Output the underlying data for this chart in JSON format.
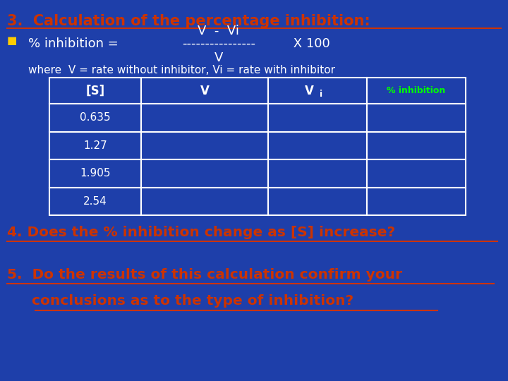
{
  "bg_color": "#1e3faa",
  "title_text": "3.  Calculation of the percentage inhibition:",
  "title_color": "#cc3300",
  "title_fontsize": 15,
  "bullet_color": "#ffcc00",
  "formula_color": "#ffffff",
  "formula_numerator": "V  -  Vi",
  "formula_dashes": "----------------",
  "formula_x100": " X 100",
  "formula_denominator": "V",
  "where_text": "where  V = rate without inhibitor, Vi = rate with inhibitor",
  "where_color": "#ffffff",
  "table_rows": [
    "0.635",
    "1.27",
    "1.905",
    "2.54"
  ],
  "table_text_color": "#ffffff",
  "table_bg_color": "#1e3faa",
  "table_border_color": "#ffffff",
  "table_header_green": "#00ff00",
  "q4_text": "4. Does the % inhibition change as [S] increase?",
  "q4_color": "#cc3300",
  "q5_line1": "5.  Do the results of this calculation confirm your",
  "q5_line2": "     conclusions as to the type of inhibition?",
  "q5_color": "#cc3300",
  "question_fontsize": 14.5
}
